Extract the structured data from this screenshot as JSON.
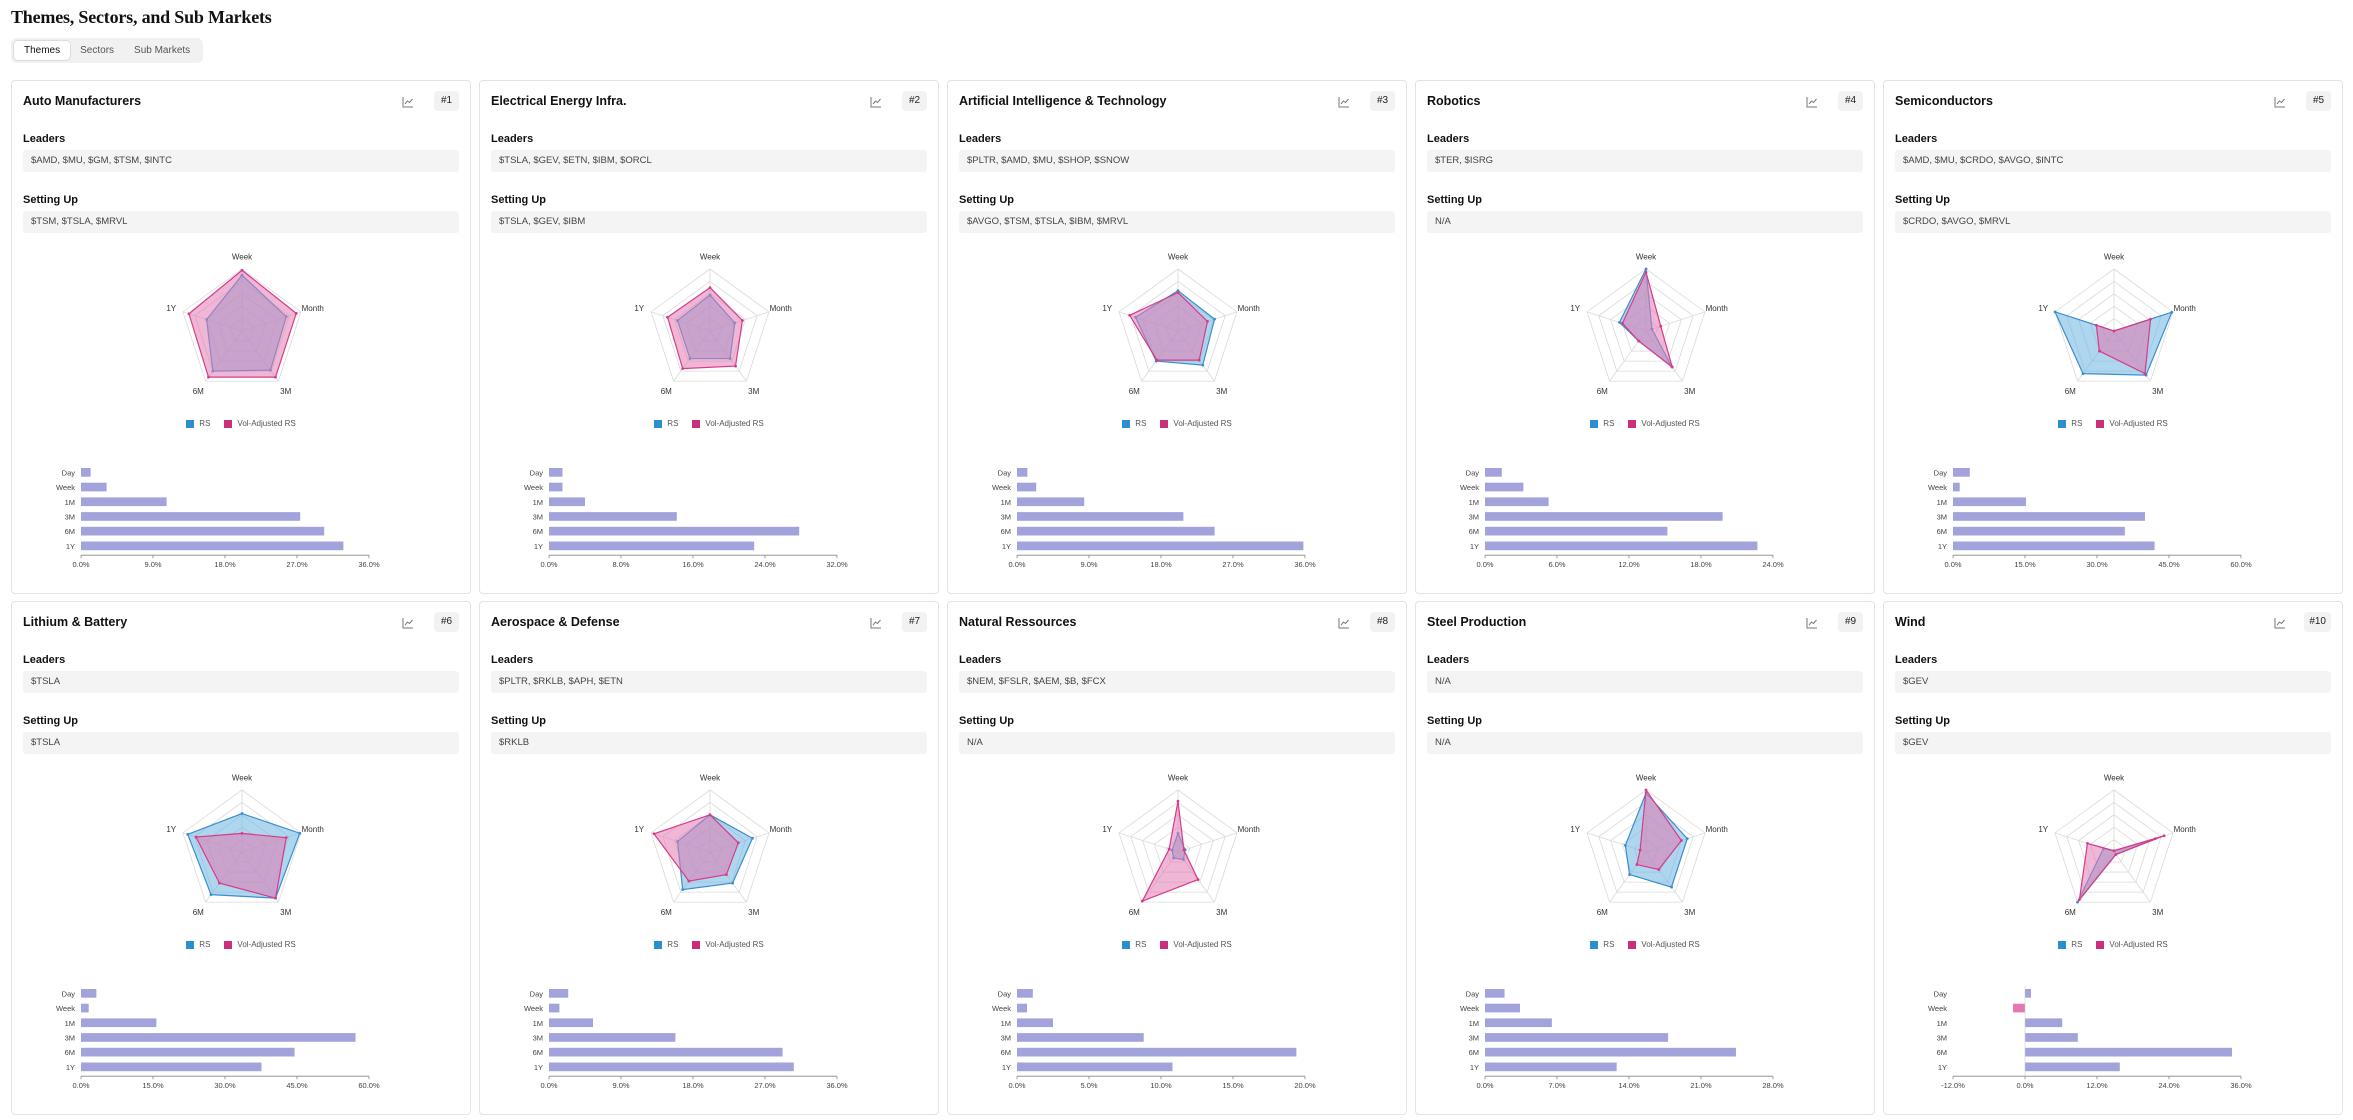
{
  "page_title": "Themes, Sectors, and Sub Markets",
  "tabs": [
    {
      "label": "Themes",
      "active": true
    },
    {
      "label": "Sectors",
      "active": false
    },
    {
      "label": "Sub Markets",
      "active": false
    }
  ],
  "section_labels": {
    "leaders": "Leaders",
    "setting_up": "Setting Up"
  },
  "legend": {
    "rs": "RS",
    "vol_adjusted": "Vol-Adjusted RS"
  },
  "colors": {
    "rs_fill": "#6bb4e0",
    "rs_stroke": "#3a8fd0",
    "vol_fill": "#e27ab2",
    "vol_stroke": "#d63b8a",
    "rs_swatch": "#2b8fcf",
    "vol_swatch": "#cc2f7a",
    "bar_fill": "#a3a3db"
  },
  "radar_axes": [
    "Week",
    "Month",
    "3M",
    "6M",
    "1Y"
  ],
  "bar_categories": [
    "Day",
    "Week",
    "1M",
    "3M",
    "6M",
    "1Y"
  ],
  "cards": [
    {
      "rank": "#1",
      "title": "Auto Manufacturers",
      "leaders": "$AMD, $MU, $GM, $TSM, $INTC",
      "setting_up": "$TSM, $TSLA, $MRVL",
      "chart_data": {
        "type": "radar+bar",
        "radar": {
          "rs": [
            0.9,
            0.75,
            0.78,
            0.8,
            0.6
          ],
          "vol_adjusted": [
            0.98,
            0.92,
            0.92,
            0.92,
            0.9
          ]
        },
        "bar": {
          "values": [
            1.2,
            3.2,
            10.7,
            27.4,
            30.4,
            32.8
          ],
          "ticks": [
            "0.0%",
            "9.0%",
            "18.0%",
            "27.0%",
            "36.0%"
          ],
          "xlim": [
            0,
            36
          ]
        }
      }
    },
    {
      "rank": "#2",
      "title": "Electrical Energy Infra.",
      "leaders": "$TSLA, $GEV, $ETN, $IBM, $ORCL",
      "setting_up": "$TSLA, $GEV, $IBM",
      "chart_data": {
        "type": "radar+bar",
        "radar": {
          "rs": [
            0.58,
            0.42,
            0.55,
            0.55,
            0.55
          ],
          "vol_adjusted": [
            0.7,
            0.55,
            0.7,
            0.75,
            0.72
          ]
        },
        "bar": {
          "values": [
            1.5,
            1.5,
            4.0,
            14.2,
            27.8,
            22.8
          ],
          "ticks": [
            "0.0%",
            "8.0%",
            "16.0%",
            "24.0%",
            "32.0%"
          ],
          "xlim": [
            0,
            32
          ]
        }
      }
    },
    {
      "rank": "#3",
      "title": "Artificial Intelligence & Technology",
      "leaders": "$PLTR, $AMD, $MU, $SHOP, $SNOW",
      "setting_up": "$AVGO, $TSM, $TSLA, $IBM, $MRVL",
      "chart_data": {
        "type": "radar+bar",
        "radar": {
          "rs": [
            0.65,
            0.62,
            0.68,
            0.6,
            0.72
          ],
          "vol_adjusted": [
            0.62,
            0.5,
            0.58,
            0.58,
            0.82
          ]
        },
        "bar": {
          "values": [
            1.3,
            2.4,
            8.4,
            20.8,
            24.7,
            35.8
          ],
          "ticks": [
            "0.0%",
            "9.0%",
            "18.0%",
            "27.0%",
            "36.0%"
          ],
          "xlim": [
            0,
            36
          ]
        }
      }
    },
    {
      "rank": "#4",
      "title": "Robotics",
      "leaders": "$TER, $ISRG",
      "setting_up": "N/A",
      "chart_data": {
        "type": "radar+bar",
        "radar": {
          "rs": [
            1.0,
            0.1,
            0.7,
            0.2,
            0.45
          ],
          "vol_adjusted": [
            0.95,
            0.25,
            0.72,
            0.2,
            0.4
          ]
        },
        "bar": {
          "values": [
            1.4,
            3.2,
            5.3,
            19.8,
            15.2,
            22.7
          ],
          "ticks": [
            "0.0%",
            "6.0%",
            "12.0%",
            "18.0%",
            "24.0%"
          ],
          "xlim": [
            0,
            24
          ]
        }
      }
    },
    {
      "rank": "#5",
      "title": "Semiconductors",
      "leaders": "$AMD, $MU, $CRDO, $AVGO, $INTC",
      "setting_up": "$CRDO, $AVGO, $MRVL",
      "chart_data": {
        "type": "radar+bar",
        "radar": {
          "rs": [
            0.0,
            0.98,
            0.88,
            0.85,
            1.0
          ],
          "vol_adjusted": [
            0.0,
            0.62,
            0.85,
            0.4,
            0.3
          ]
        },
        "bar": {
          "values": [
            3.5,
            1.4,
            15.2,
            40.0,
            35.8,
            42.0
          ],
          "ticks": [
            "0.0%",
            "15.0%",
            "30.0%",
            "45.0%",
            "60.0%"
          ],
          "xlim": [
            0,
            60
          ]
        }
      }
    },
    {
      "rank": "#6",
      "title": "Lithium & Battery",
      "leaders": "$TSLA",
      "setting_up": "$TSLA",
      "chart_data": {
        "type": "radar+bar",
        "radar": {
          "rs": [
            0.62,
            0.98,
            0.92,
            0.85,
            0.92
          ],
          "vol_adjusted": [
            0.3,
            0.75,
            0.92,
            0.62,
            0.78
          ]
        },
        "bar": {
          "values": [
            3.2,
            1.6,
            15.7,
            57.2,
            44.5,
            37.6
          ],
          "ticks": [
            "0.0%",
            "15.0%",
            "30.0%",
            "45.0%",
            "60.0%"
          ],
          "xlim": [
            0,
            60
          ]
        }
      }
    },
    {
      "rank": "#7",
      "title": "Aerospace & Defense",
      "leaders": "$PLTR, $RKLB, $APH, $ETN",
      "setting_up": "$RKLB",
      "chart_data": {
        "type": "radar+bar",
        "radar": {
          "rs": [
            0.6,
            0.72,
            0.62,
            0.75,
            0.55
          ],
          "vol_adjusted": [
            0.6,
            0.48,
            0.45,
            0.58,
            0.95
          ]
        },
        "bar": {
          "values": [
            2.4,
            1.3,
            5.5,
            15.8,
            29.2,
            30.6
          ],
          "ticks": [
            "0.0%",
            "9.0%",
            "18.0%",
            "27.0%",
            "36.0%"
          ],
          "xlim": [
            0,
            36
          ]
        }
      }
    },
    {
      "rank": "#8",
      "title": "Natural Ressources",
      "leaders": "$NEM, $FSLR, $AEM, $B, $FCX",
      "setting_up": "N/A",
      "chart_data": {
        "type": "radar+bar",
        "radar": {
          "rs": [
            0.3,
            0.12,
            0.15,
            0.12,
            0.1
          ],
          "vol_adjusted": [
            0.82,
            0.1,
            0.55,
            0.98,
            0.15
          ]
        },
        "bar": {
          "values": [
            1.1,
            0.7,
            2.5,
            8.8,
            19.4,
            10.8
          ],
          "ticks": [
            "0.0%",
            "5.0%",
            "10.0%",
            "15.0%",
            "20.0%"
          ],
          "xlim": [
            0,
            20
          ]
        }
      }
    },
    {
      "rank": "#9",
      "title": "Steel Production",
      "leaders": "N/A",
      "setting_up": "N/A",
      "chart_data": {
        "type": "radar+bar",
        "radar": {
          "rs": [
            0.95,
            0.7,
            0.7,
            0.45,
            0.35
          ],
          "vol_adjusted": [
            1.0,
            0.6,
            0.35,
            0.25,
            0.1
          ]
        },
        "bar": {
          "values": [
            1.9,
            3.4,
            6.5,
            17.8,
            24.4,
            12.8
          ],
          "ticks": [
            "0.0%",
            "7.0%",
            "14.0%",
            "21.0%",
            "28.0%"
          ],
          "xlim": [
            0,
            28
          ]
        }
      }
    },
    {
      "rank": "#10",
      "title": "Wind",
      "leaders": "$GEV",
      "setting_up": "$GEV",
      "chart_data": {
        "type": "radar+bar",
        "radar": {
          "rs": [
            0.02,
            0.7,
            0.05,
            1.0,
            0.18
          ],
          "vol_adjusted": [
            0.02,
            0.85,
            0.05,
            0.95,
            0.45
          ]
        },
        "bar": {
          "values": [
            1.0,
            -2.0,
            6.2,
            8.8,
            34.5,
            15.8
          ],
          "ticks": [
            "-12.0%",
            "0.0%",
            "12.0%",
            "24.0%",
            "36.0%"
          ],
          "xlim": [
            -12,
            36
          ]
        }
      }
    }
  ]
}
